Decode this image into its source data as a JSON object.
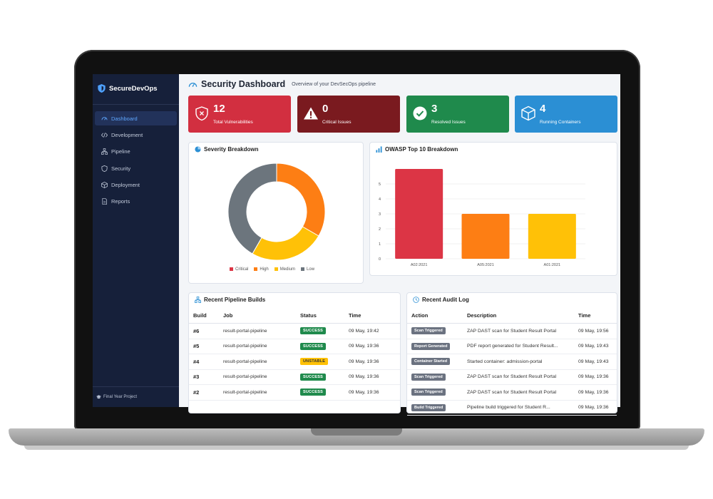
{
  "app": {
    "brand": "SecureDevOps",
    "footer": "Final Year Project"
  },
  "nav": [
    {
      "label": "Dashboard",
      "icon": "dashboard-icon",
      "active": true
    },
    {
      "label": "Development",
      "icon": "code-icon"
    },
    {
      "label": "Pipeline",
      "icon": "pipeline-icon"
    },
    {
      "label": "Security",
      "icon": "shield-icon"
    },
    {
      "label": "Deployment",
      "icon": "box-icon"
    },
    {
      "label": "Reports",
      "icon": "report-icon"
    }
  ],
  "header": {
    "title": "Security Dashboard",
    "subtitle": "Overview of your DevSecOps pipeline"
  },
  "stats": [
    {
      "value": "12",
      "label": "Total Vulnerabilities",
      "color": "#d22f40"
    },
    {
      "value": "0",
      "label": "Critical Issues",
      "color": "#7a1a1f"
    },
    {
      "value": "3",
      "label": "Resolved Issues",
      "color": "#1f8a4c"
    },
    {
      "value": "4",
      "label": "Running Containers",
      "color": "#2b8fd4"
    }
  ],
  "severity": {
    "title": "Severity Breakdown",
    "legend": [
      "Critical",
      "High",
      "Medium",
      "Low"
    ]
  },
  "owasp": {
    "title": "OWASP Top 10 Breakdown"
  },
  "builds": {
    "title": "Recent Pipeline Builds",
    "columns": [
      "Build",
      "Job",
      "Status",
      "Time"
    ],
    "rows": [
      {
        "build": "#6",
        "job": "result-portal-pipeline",
        "status": "SUCCESS",
        "time": "09 May, 19:42"
      },
      {
        "build": "#5",
        "job": "result-portal-pipeline",
        "status": "SUCCESS",
        "time": "09 May, 19:36"
      },
      {
        "build": "#4",
        "job": "result-portal-pipeline",
        "status": "UNSTABLE",
        "time": "09 May, 19:36"
      },
      {
        "build": "#3",
        "job": "result-portal-pipeline",
        "status": "SUCCESS",
        "time": "09 May, 19:36"
      },
      {
        "build": "#2",
        "job": "result-portal-pipeline",
        "status": "SUCCESS",
        "time": "09 May, 19:36"
      }
    ]
  },
  "audit": {
    "title": "Recent Audit Log",
    "columns": [
      "Action",
      "Description",
      "Time"
    ],
    "rows": [
      {
        "action": "Scan Triggered",
        "description": "ZAP DAST scan for Student Result Portal",
        "time": "09 May, 19:56"
      },
      {
        "action": "Report Generated",
        "description": "PDF report generated for Student Result...",
        "time": "09 May, 19:43"
      },
      {
        "action": "Container Started",
        "description": "Started container: admission-portal",
        "time": "09 May, 19:43"
      },
      {
        "action": "Scan Triggered",
        "description": "ZAP DAST scan for Student Result Portal",
        "time": "09 May, 19:36"
      },
      {
        "action": "Scan Triggered",
        "description": "ZAP DAST scan for Student Result Portal",
        "time": "09 May, 19:36"
      },
      {
        "action": "Build Triggered",
        "description": "Pipeline build triggered for Student R...",
        "time": "09 May, 19:36"
      }
    ]
  },
  "chart_data": [
    {
      "type": "pie",
      "title": "Severity Breakdown",
      "categories": [
        "Critical",
        "High",
        "Medium",
        "Low"
      ],
      "values": [
        0,
        4,
        3,
        5
      ],
      "colors": [
        "#dc3545",
        "#fd7e14",
        "#ffc107",
        "#6c757d"
      ]
    },
    {
      "type": "bar",
      "title": "OWASP Top 10 Breakdown",
      "categories": [
        "A02:2021",
        "A05:2021",
        "A01:2021"
      ],
      "values": [
        6,
        3,
        3
      ],
      "ylim": [
        0,
        6
      ],
      "yticks": [
        "0",
        "1",
        "2",
        "3",
        "4",
        "5"
      ],
      "colors": [
        "#dc3545",
        "#fd7e14",
        "#ffc107"
      ],
      "grid": true
    }
  ]
}
